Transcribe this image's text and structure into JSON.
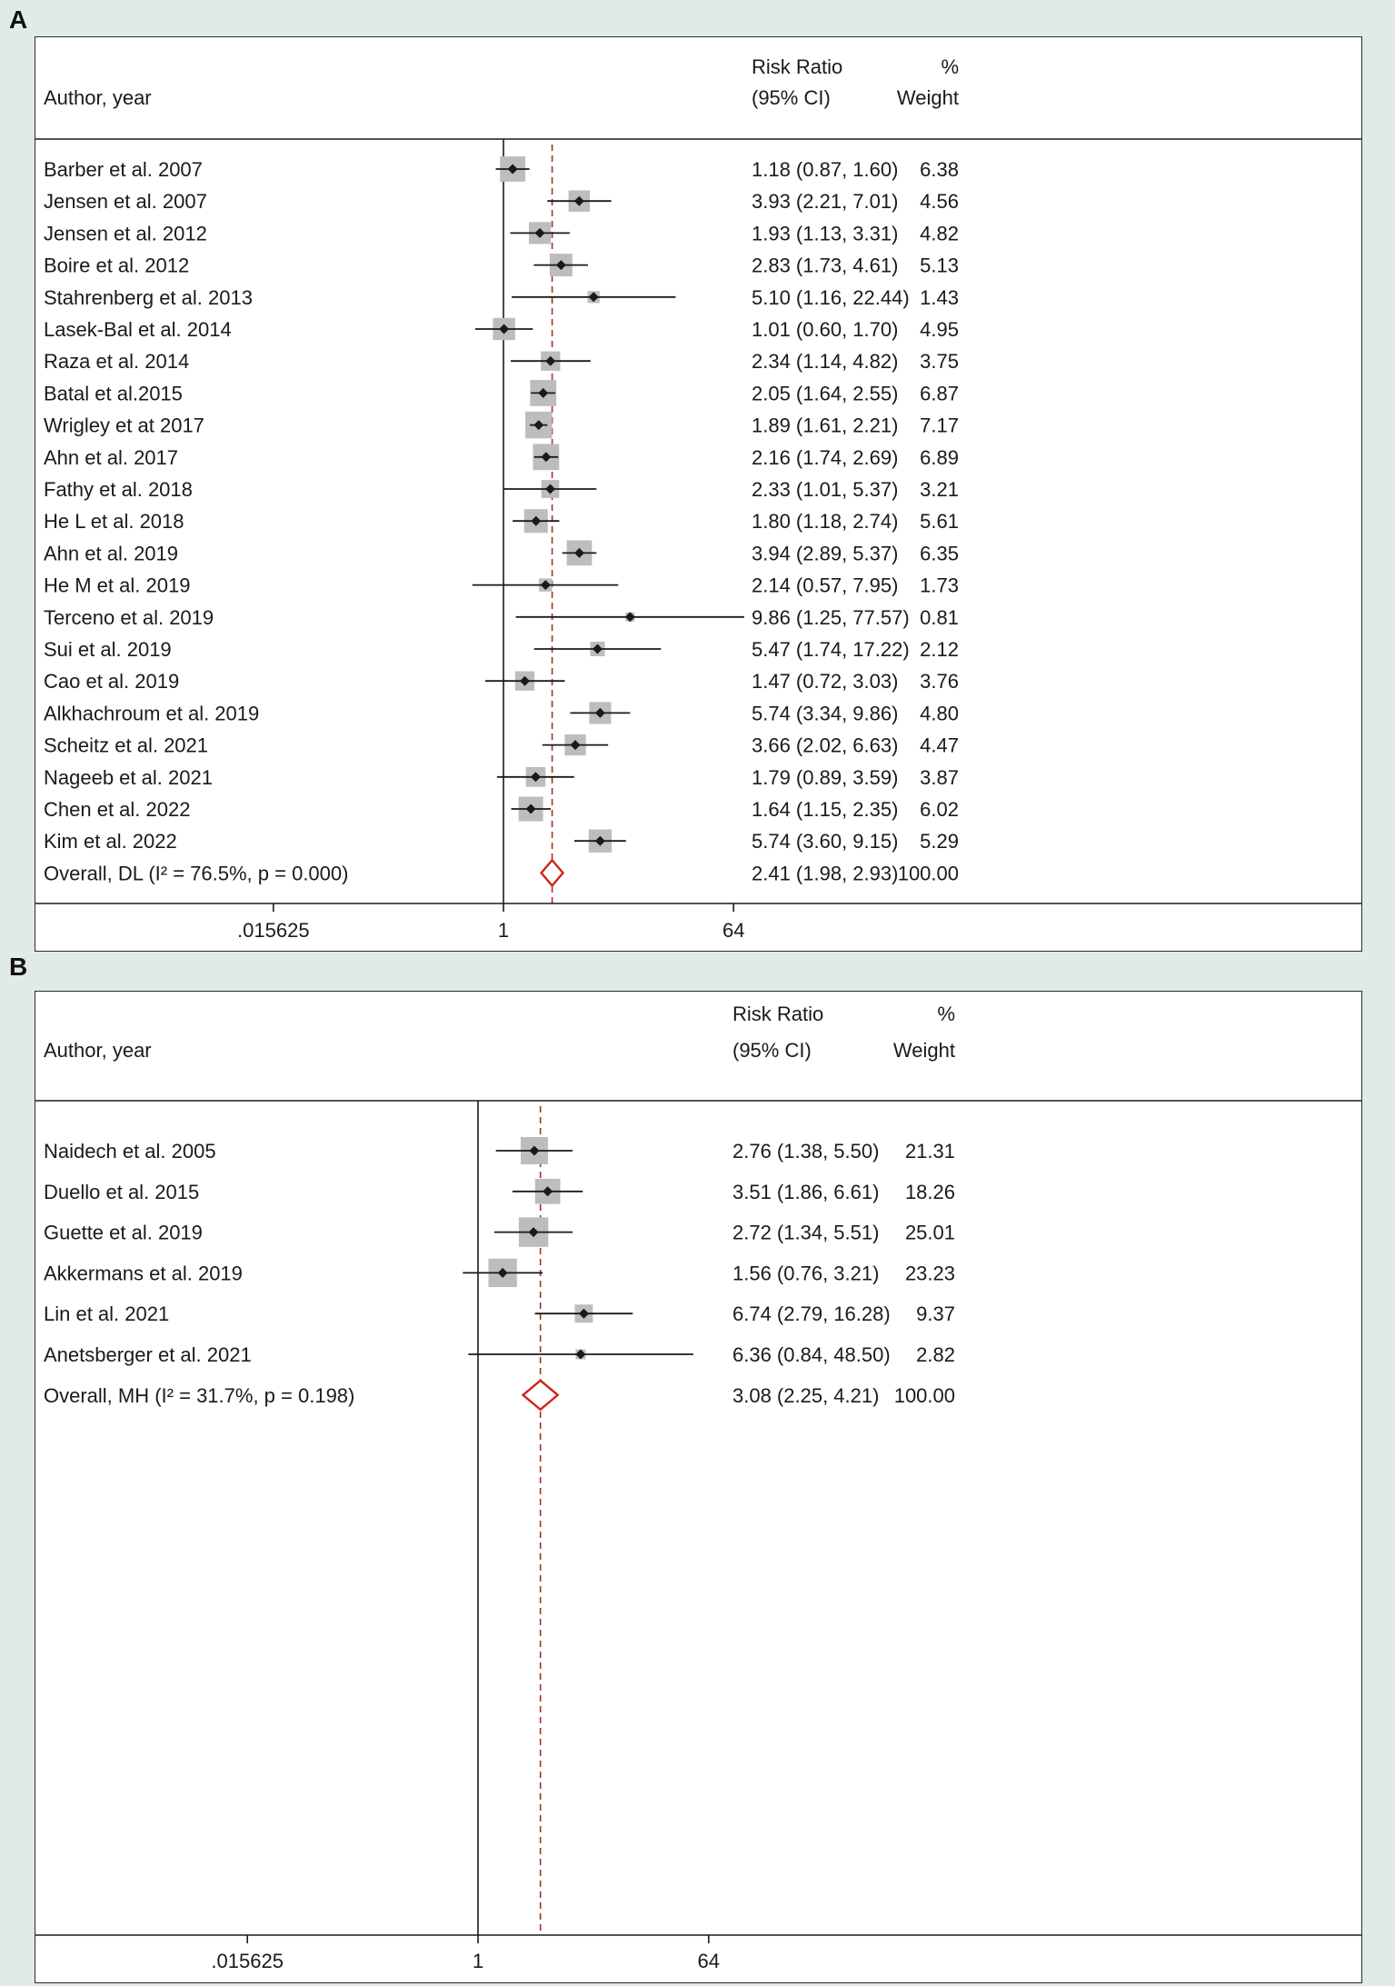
{
  "page": {
    "panel_labels": [
      "A",
      "B"
    ],
    "background": "#e0ebe7"
  },
  "colors": {
    "weight_box": "#bdbdbd",
    "ci_line": "#1a1a1a",
    "overall_diamond": "#d02318",
    "overall_dashed_line": "#a03028",
    "text": "#1a1a1a"
  },
  "chart_data": [
    {
      "type": "forest",
      "panel": "A",
      "header": {
        "author": "Author, year",
        "effect_line1": "Risk Ratio",
        "effect_line2": "(95% CI)",
        "weight_line1": "%",
        "weight_line2": "Weight"
      },
      "x_axis": {
        "scale": "log",
        "ticks": [
          ".015625",
          "1",
          "64"
        ],
        "tick_values": [
          0.015625,
          1,
          64
        ],
        "null_line": 1
      },
      "studies": [
        {
          "label": "Barber et al. 2007",
          "est": 1.18,
          "lo": 0.87,
          "hi": 1.6,
          "ci_text": "1.18 (0.87, 1.60)",
          "weight": 6.38,
          "weight_text": "6.38"
        },
        {
          "label": "Jensen et al. 2007",
          "est": 3.93,
          "lo": 2.21,
          "hi": 7.01,
          "ci_text": "3.93 (2.21, 7.01)",
          "weight": 4.56,
          "weight_text": "4.56"
        },
        {
          "label": "Jensen et al. 2012",
          "est": 1.93,
          "lo": 1.13,
          "hi": 3.31,
          "ci_text": "1.93 (1.13, 3.31)",
          "weight": 4.82,
          "weight_text": "4.82"
        },
        {
          "label": "Boire et al. 2012",
          "est": 2.83,
          "lo": 1.73,
          "hi": 4.61,
          "ci_text": "2.83 (1.73, 4.61)",
          "weight": 5.13,
          "weight_text": "5.13"
        },
        {
          "label": "Stahrenberg et al. 2013",
          "est": 5.1,
          "lo": 1.16,
          "hi": 22.44,
          "ci_text": "5.10 (1.16, 22.44)",
          "weight": 1.43,
          "weight_text": "1.43"
        },
        {
          "label": "Lasek-Bal et al. 2014",
          "est": 1.01,
          "lo": 0.6,
          "hi": 1.7,
          "ci_text": "1.01 (0.60, 1.70)",
          "weight": 4.95,
          "weight_text": "4.95"
        },
        {
          "label": "Raza et al. 2014",
          "est": 2.34,
          "lo": 1.14,
          "hi": 4.82,
          "ci_text": "2.34 (1.14, 4.82)",
          "weight": 3.75,
          "weight_text": "3.75"
        },
        {
          "label": "Batal et al.2015",
          "est": 2.05,
          "lo": 1.64,
          "hi": 2.55,
          "ci_text": "2.05 (1.64, 2.55)",
          "weight": 6.87,
          "weight_text": "6.87"
        },
        {
          "label": "Wrigley et at 2017",
          "est": 1.89,
          "lo": 1.61,
          "hi": 2.21,
          "ci_text": "1.89 (1.61, 2.21)",
          "weight": 7.17,
          "weight_text": "7.17"
        },
        {
          "label": "Ahn et al. 2017",
          "est": 2.16,
          "lo": 1.74,
          "hi": 2.69,
          "ci_text": "2.16 (1.74, 2.69)",
          "weight": 6.89,
          "weight_text": "6.89"
        },
        {
          "label": "Fathy et al. 2018",
          "est": 2.33,
          "lo": 1.01,
          "hi": 5.37,
          "ci_text": "2.33 (1.01, 5.37)",
          "weight": 3.21,
          "weight_text": "3.21"
        },
        {
          "label": "He L et al. 2018",
          "est": 1.8,
          "lo": 1.18,
          "hi": 2.74,
          "ci_text": "1.80 (1.18, 2.74)",
          "weight": 5.61,
          "weight_text": "5.61"
        },
        {
          "label": "Ahn et al. 2019",
          "est": 3.94,
          "lo": 2.89,
          "hi": 5.37,
          "ci_text": "3.94 (2.89, 5.37)",
          "weight": 6.35,
          "weight_text": "6.35"
        },
        {
          "label": "He M et al. 2019",
          "est": 2.14,
          "lo": 0.57,
          "hi": 7.95,
          "ci_text": "2.14 (0.57, 7.95)",
          "weight": 1.73,
          "weight_text": "1.73"
        },
        {
          "label": "Terceno et al. 2019",
          "est": 9.86,
          "lo": 1.25,
          "hi": 77.57,
          "ci_text": "9.86 (1.25, 77.57)",
          "weight": 0.81,
          "weight_text": "0.81"
        },
        {
          "label": "Sui et al. 2019",
          "est": 5.47,
          "lo": 1.74,
          "hi": 17.22,
          "ci_text": "5.47 (1.74, 17.22)",
          "weight": 2.12,
          "weight_text": "2.12"
        },
        {
          "label": "Cao et al. 2019",
          "est": 1.47,
          "lo": 0.72,
          "hi": 3.03,
          "ci_text": "1.47 (0.72, 3.03)",
          "weight": 3.76,
          "weight_text": "3.76"
        },
        {
          "label": "Alkhachroum et al. 2019",
          "est": 5.74,
          "lo": 3.34,
          "hi": 9.86,
          "ci_text": "5.74 (3.34, 9.86)",
          "weight": 4.8,
          "weight_text": "4.80"
        },
        {
          "label": "Scheitz et al. 2021",
          "est": 3.66,
          "lo": 2.02,
          "hi": 6.63,
          "ci_text": "3.66 (2.02, 6.63)",
          "weight": 4.47,
          "weight_text": "4.47"
        },
        {
          "label": "Nageeb et al. 2021",
          "est": 1.79,
          "lo": 0.89,
          "hi": 3.59,
          "ci_text": "1.79 (0.89, 3.59)",
          "weight": 3.87,
          "weight_text": "3.87"
        },
        {
          "label": "Chen et al. 2022",
          "est": 1.64,
          "lo": 1.15,
          "hi": 2.35,
          "ci_text": "1.64 (1.15, 2.35)",
          "weight": 6.02,
          "weight_text": "6.02"
        },
        {
          "label": "Kim et al. 2022",
          "est": 5.74,
          "lo": 3.6,
          "hi": 9.15,
          "ci_text": "5.74 (3.60, 9.15)",
          "weight": 5.29,
          "weight_text": "5.29"
        }
      ],
      "overall": {
        "label": "Overall, DL (I² = 76.5%, p = 0.000)",
        "est": 2.41,
        "lo": 1.98,
        "hi": 2.93,
        "ci_text": "2.41 (1.98, 2.93)",
        "weight": 100.0,
        "weight_text": "100.00"
      }
    },
    {
      "type": "forest",
      "panel": "B",
      "header": {
        "author": "Author, year",
        "effect_line1": "Risk Ratio",
        "effect_line2": "(95% CI)",
        "weight_line1": "%",
        "weight_line2": "Weight"
      },
      "x_axis": {
        "scale": "log",
        "ticks": [
          ".015625",
          "1",
          "64"
        ],
        "tick_values": [
          0.015625,
          1,
          64
        ],
        "null_line": 1
      },
      "studies": [
        {
          "label": "Naidech et al. 2005",
          "est": 2.76,
          "lo": 1.38,
          "hi": 5.5,
          "ci_text": "2.76 (1.38, 5.50)",
          "weight": 21.31,
          "weight_text": "21.31"
        },
        {
          "label": "Duello et al. 2015",
          "est": 3.51,
          "lo": 1.86,
          "hi": 6.61,
          "ci_text": "3.51 (1.86, 6.61)",
          "weight": 18.26,
          "weight_text": "18.26"
        },
        {
          "label": "Guette et al. 2019",
          "est": 2.72,
          "lo": 1.34,
          "hi": 5.51,
          "ci_text": "2.72 (1.34, 5.51)",
          "weight": 25.01,
          "weight_text": "25.01"
        },
        {
          "label": "Akkermans et al. 2019",
          "est": 1.56,
          "lo": 0.76,
          "hi": 3.21,
          "ci_text": "1.56 (0.76, 3.21)",
          "weight": 23.23,
          "weight_text": "23.23"
        },
        {
          "label": "Lin et al. 2021",
          "est": 6.74,
          "lo": 2.79,
          "hi": 16.28,
          "ci_text": "6.74 (2.79, 16.28)",
          "weight": 9.37,
          "weight_text": "9.37"
        },
        {
          "label": "Anetsberger et al. 2021",
          "est": 6.36,
          "lo": 0.84,
          "hi": 48.5,
          "ci_text": "6.36 (0.84, 48.50)",
          "weight": 2.82,
          "weight_text": "2.82"
        }
      ],
      "overall": {
        "label": "Overall, MH (I² = 31.7%, p = 0.198)",
        "est": 3.08,
        "lo": 2.25,
        "hi": 4.21,
        "ci_text": "3.08 (2.25, 4.21)",
        "weight": 100.0,
        "weight_text": "100.00"
      }
    }
  ]
}
